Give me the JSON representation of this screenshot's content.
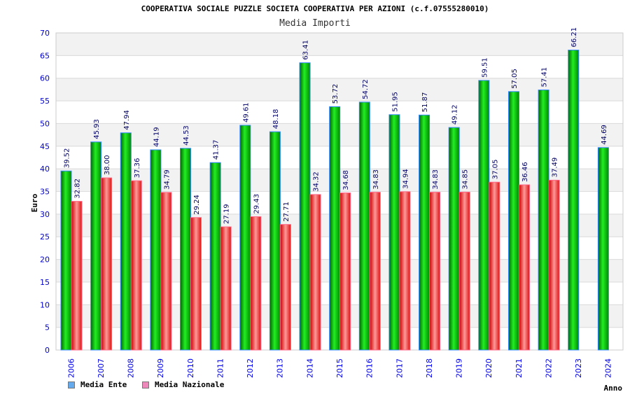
{
  "chart_data": {
    "type": "bar",
    "title": "COOPERATIVA SOCIALE PUZZLE SOCIETA COOPERATIVA PER AZIONI (c.f.07555280010)",
    "subtitle": "Media Importi",
    "xlabel": "Anno",
    "ylabel": "Euro",
    "ylim": [
      0,
      70
    ],
    "yticks": [
      0,
      5,
      10,
      15,
      20,
      25,
      30,
      35,
      40,
      45,
      50,
      55,
      60,
      65,
      70
    ],
    "categories": [
      "2006",
      "2007",
      "2008",
      "2009",
      "2010",
      "2011",
      "2012",
      "2013",
      "2014",
      "2015",
      "2016",
      "2017",
      "2018",
      "2019",
      "2020",
      "2021",
      "2022",
      "2023",
      "2024"
    ],
    "series": [
      {
        "name": "Media Ente",
        "color": "#66aaee",
        "values": [
          39.52,
          45.93,
          47.94,
          44.19,
          44.53,
          41.37,
          49.61,
          48.18,
          63.41,
          53.72,
          54.72,
          51.95,
          51.87,
          49.12,
          59.51,
          57.05,
          57.41,
          66.21,
          44.69
        ]
      },
      {
        "name": "Media Nazionale",
        "color": "#ee88bb",
        "values": [
          32.82,
          38.0,
          37.36,
          34.79,
          29.24,
          27.19,
          29.43,
          27.71,
          34.32,
          34.68,
          34.83,
          34.94,
          34.83,
          34.85,
          37.05,
          36.46,
          37.49,
          null,
          null
        ]
      }
    ],
    "legend": "bottom-left",
    "grid": true
  }
}
